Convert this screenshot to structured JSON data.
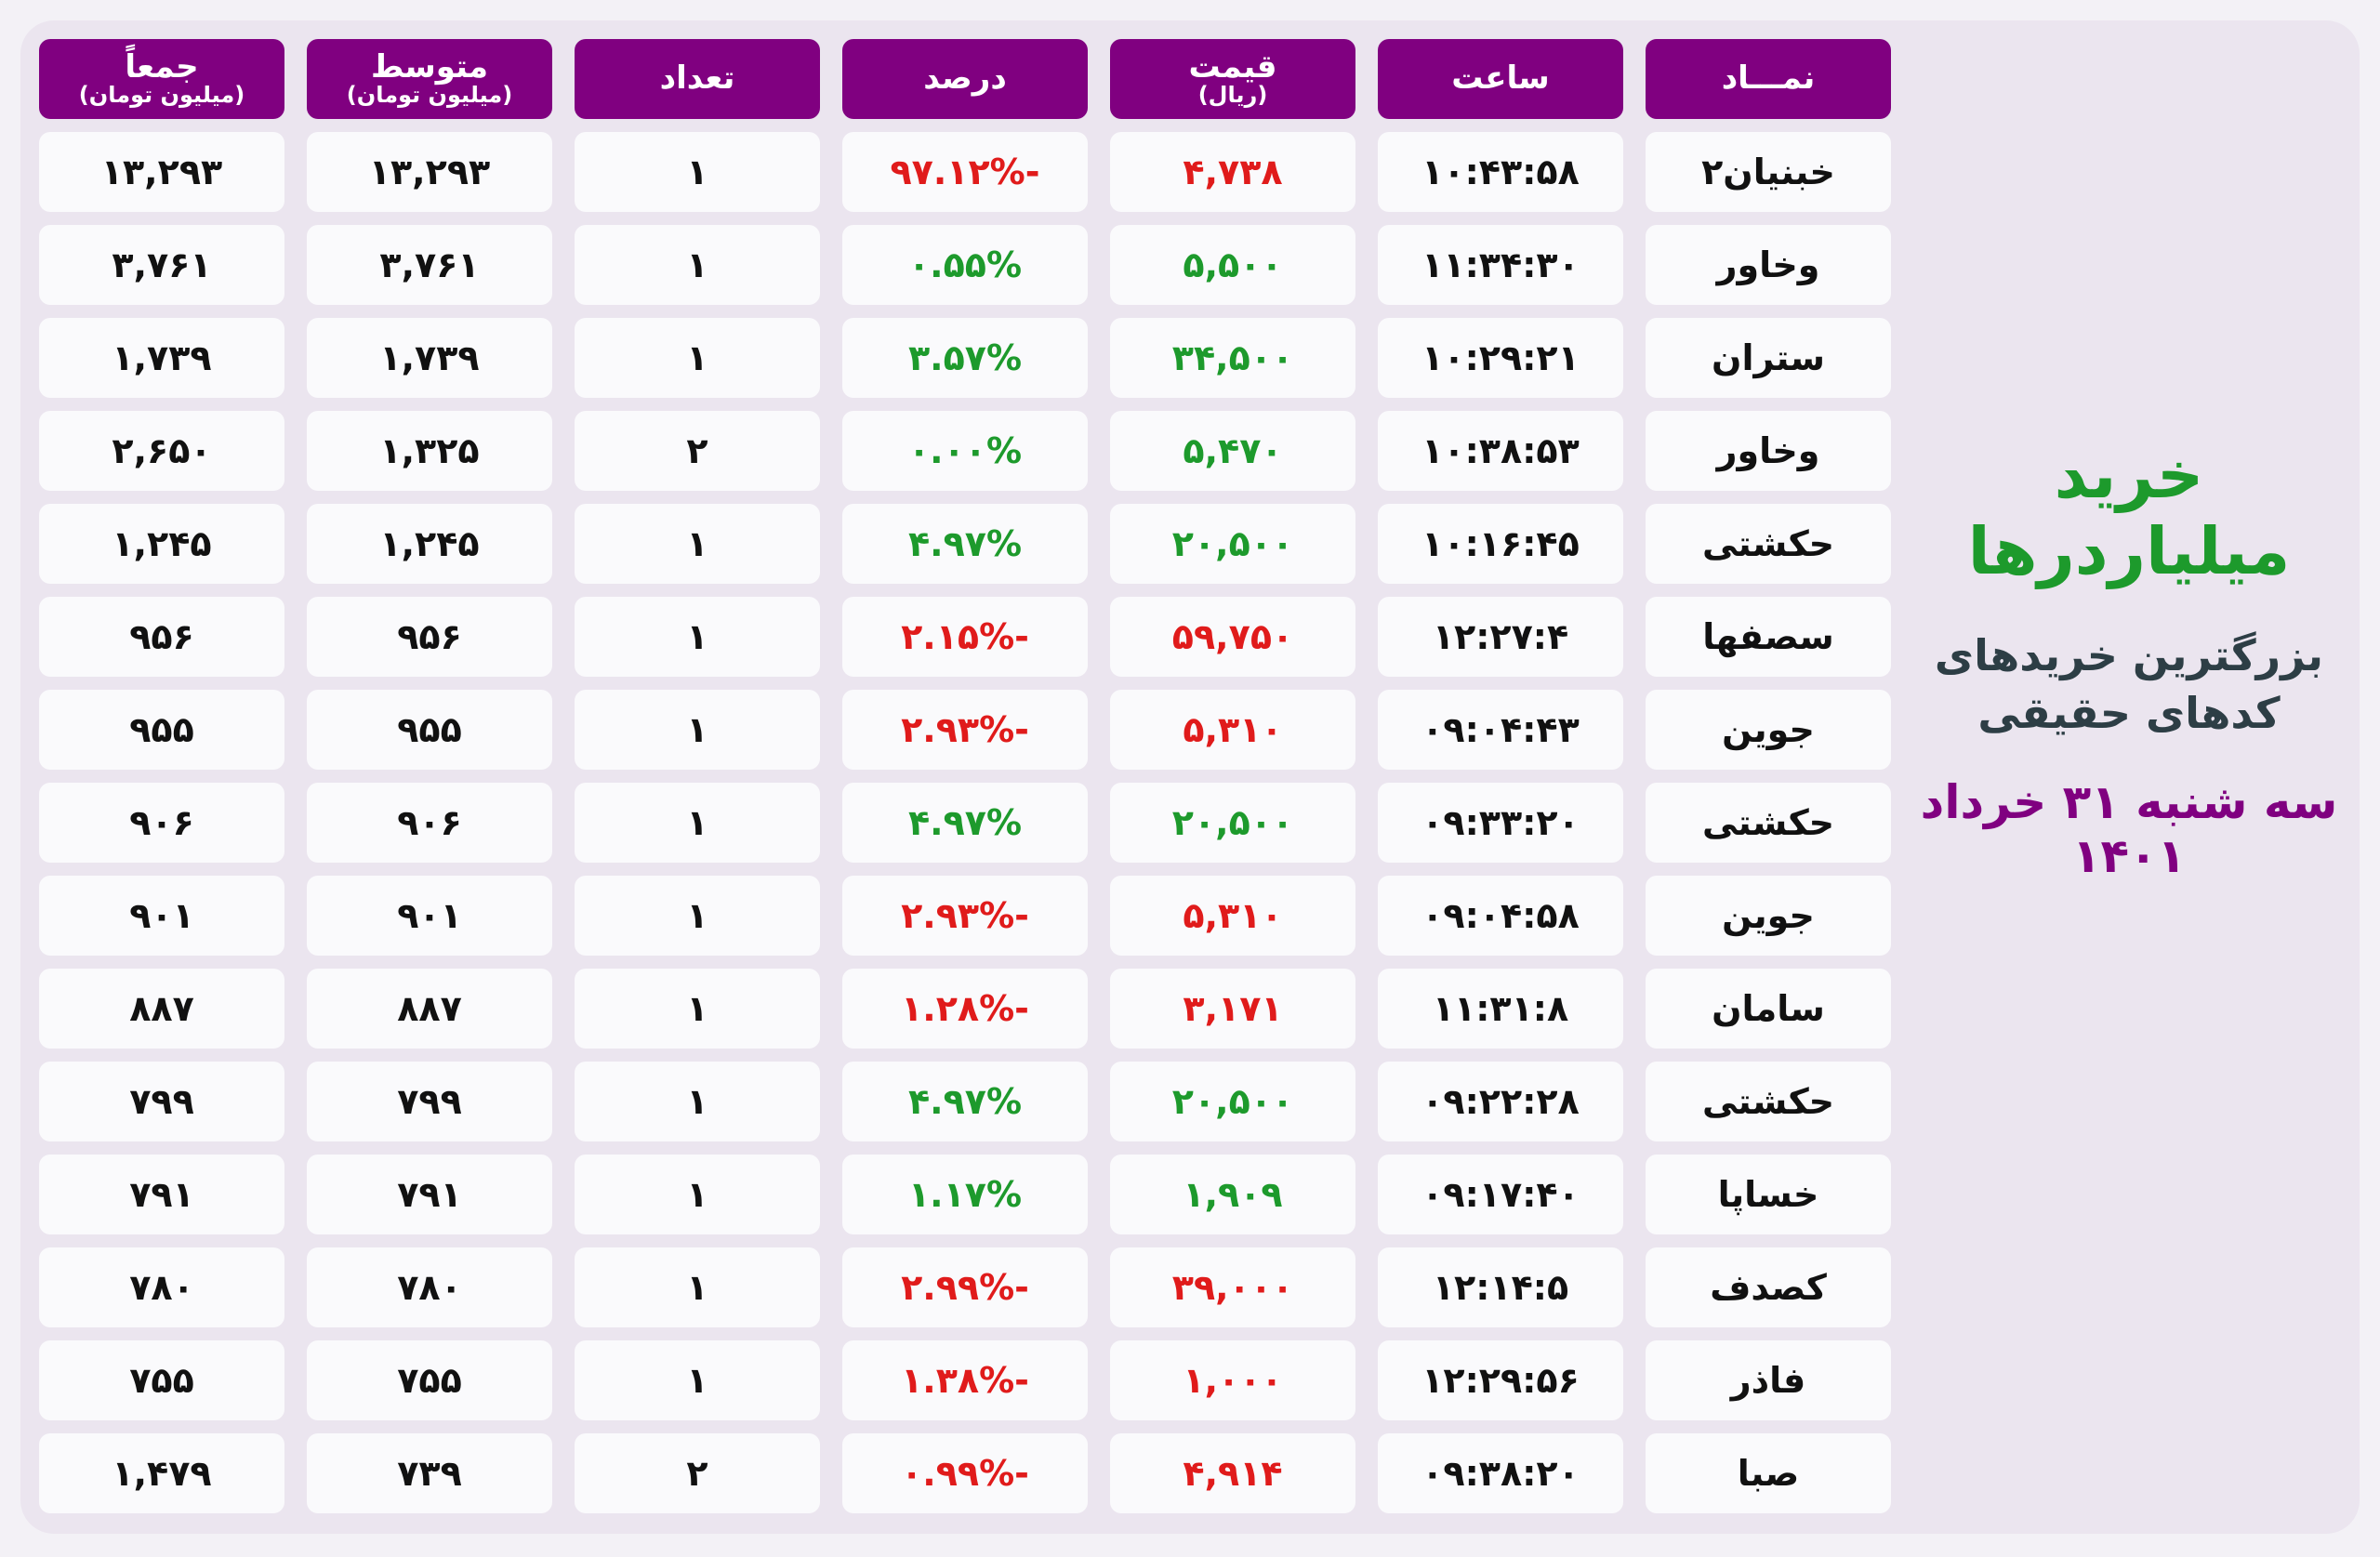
{
  "side": {
    "title": "خرید میلیاردرها",
    "subtitle_line1": "بزرگترین خریدهای",
    "subtitle_line2": "کدهای حقیقی",
    "date": "سه شنبه ۳۱ خرداد ۱۴۰۱"
  },
  "colors": {
    "header_bg": "#800080",
    "positive": "#1d9a2c",
    "negative": "#e01b1b",
    "panel_bg": "#ebe5ef"
  },
  "headers": [
    {
      "main": "جمعاً",
      "sub": "(میلیون تومان)"
    },
    {
      "main": "متوسط",
      "sub": "(میلیون تومان)"
    },
    {
      "main": "تعداد",
      "sub": ""
    },
    {
      "main": "درصد",
      "sub": ""
    },
    {
      "main": "قیمت",
      "sub": "(ریال)"
    },
    {
      "main": "ساعت",
      "sub": ""
    },
    {
      "main": "نمـــاد",
      "sub": ""
    }
  ],
  "rows": [
    {
      "symbol": "خبنیان۲",
      "time": "۱۰:۴۳:۵۸",
      "price": "۴,۷۳۸",
      "percent": "-۹۷.۱۲%",
      "trend": "neg",
      "count": "۱",
      "avg": "۱۳,۲۹۳",
      "total": "۱۳,۲۹۳"
    },
    {
      "symbol": "وخاور",
      "time": "۱۱:۳۴:۳۰",
      "price": "۵,۵۰۰",
      "percent": "۰.۵۵%",
      "trend": "pos",
      "count": "۱",
      "avg": "۳,۷۶۱",
      "total": "۳,۷۶۱"
    },
    {
      "symbol": "ستران",
      "time": "۱۰:۲۹:۲۱",
      "price": "۳۴,۵۰۰",
      "percent": "۳.۵۷%",
      "trend": "pos",
      "count": "۱",
      "avg": "۱,۷۳۹",
      "total": "۱,۷۳۹"
    },
    {
      "symbol": "وخاور",
      "time": "۱۰:۳۸:۵۳",
      "price": "۵,۴۷۰",
      "percent": "۰.۰۰%",
      "trend": "pos",
      "count": "۲",
      "avg": "۱,۳۲۵",
      "total": "۲,۶۵۰"
    },
    {
      "symbol": "حکشتی",
      "time": "۱۰:۱۶:۴۵",
      "price": "۲۰,۵۰۰",
      "percent": "۴.۹۷%",
      "trend": "pos",
      "count": "۱",
      "avg": "۱,۲۴۵",
      "total": "۱,۲۴۵"
    },
    {
      "symbol": "سصفها",
      "time": "۱۲:۲۷:۴",
      "price": "۵۹,۷۵۰",
      "percent": "-۲.۱۵%",
      "trend": "neg",
      "count": "۱",
      "avg": "۹۵۶",
      "total": "۹۵۶"
    },
    {
      "symbol": "جوین",
      "time": "۰۹:۰۴:۴۳",
      "price": "۵,۳۱۰",
      "percent": "-۲.۹۳%",
      "trend": "neg",
      "count": "۱",
      "avg": "۹۵۵",
      "total": "۹۵۵"
    },
    {
      "symbol": "حکشتی",
      "time": "۰۹:۳۳:۲۰",
      "price": "۲۰,۵۰۰",
      "percent": "۴.۹۷%",
      "trend": "pos",
      "count": "۱",
      "avg": "۹۰۶",
      "total": "۹۰۶"
    },
    {
      "symbol": "جوین",
      "time": "۰۹:۰۴:۵۸",
      "price": "۵,۳۱۰",
      "percent": "-۲.۹۳%",
      "trend": "neg",
      "count": "۱",
      "avg": "۹۰۱",
      "total": "۹۰۱"
    },
    {
      "symbol": "سامان",
      "time": "۱۱:۳۱:۸",
      "price": "۳,۱۷۱",
      "percent": "-۱.۲۸%",
      "trend": "neg",
      "count": "۱",
      "avg": "۸۸۷",
      "total": "۸۸۷"
    },
    {
      "symbol": "حکشتی",
      "time": "۰۹:۲۲:۲۸",
      "price": "۲۰,۵۰۰",
      "percent": "۴.۹۷%",
      "trend": "pos",
      "count": "۱",
      "avg": "۷۹۹",
      "total": "۷۹۹"
    },
    {
      "symbol": "خساپا",
      "time": "۰۹:۱۷:۴۰",
      "price": "۱,۹۰۹",
      "percent": "۱.۱۷%",
      "trend": "pos",
      "count": "۱",
      "avg": "۷۹۱",
      "total": "۷۹۱"
    },
    {
      "symbol": "کصدف",
      "time": "۱۲:۱۴:۵",
      "price": "۳۹,۰۰۰",
      "percent": "-۲.۹۹%",
      "trend": "neg",
      "count": "۱",
      "avg": "۷۸۰",
      "total": "۷۸۰"
    },
    {
      "symbol": "فاذر",
      "time": "۱۲:۲۹:۵۶",
      "price": "۱,۰۰۰",
      "percent": "-۱.۳۸%",
      "trend": "neg",
      "count": "۱",
      "avg": "۷۵۵",
      "total": "۷۵۵"
    },
    {
      "symbol": "صبا",
      "time": "۰۹:۳۸:۲۰",
      "price": "۴,۹۱۴",
      "percent": "-۰.۹۹%",
      "trend": "neg",
      "count": "۲",
      "avg": "۷۳۹",
      "total": "۱,۴۷۹"
    }
  ]
}
